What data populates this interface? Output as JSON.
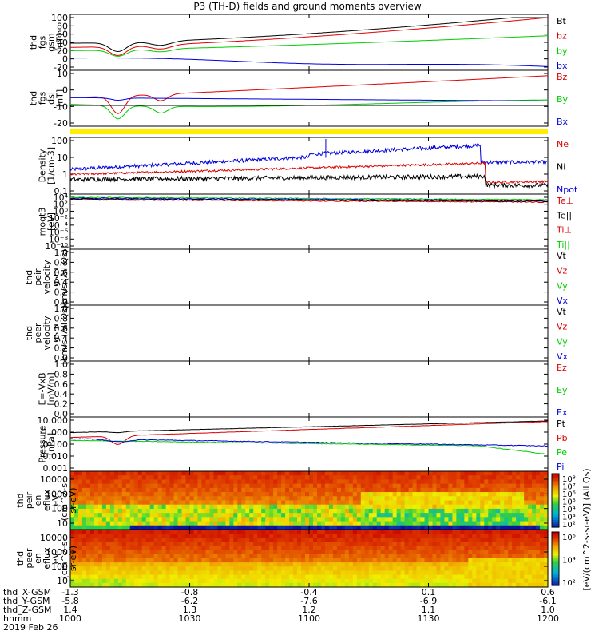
{
  "chart_data": {
    "title": "P3 (TH-D) fields and ground moments overview",
    "type": "line",
    "date_label": "2019 Feb 26",
    "panels": [
      {
        "id": "fgs_gsm",
        "ylabel": [
          "thd",
          "fgs",
          "gsm",
          "[nT]"
        ],
        "yticks": [
          "100",
          "80",
          "60",
          "40",
          "20",
          "0",
          "-20"
        ],
        "legend": [
          "Bt",
          "bz",
          "by",
          "bx"
        ],
        "legend_colors": [
          "#000000",
          "#dd0000",
          "#00cc00",
          "#0000dd"
        ]
      },
      {
        "id": "fgs_dsl",
        "ylabel": [
          "thd",
          "fgs",
          "dsl",
          "[nT]"
        ],
        "yticks": [
          "10",
          "0",
          "-10",
          "-20"
        ],
        "legend": [
          "Bz",
          "By",
          "Bx"
        ],
        "legend_colors": [
          "#dd0000",
          "#00cc00",
          "#0000dd"
        ]
      },
      {
        "id": "density",
        "ylabel": [
          "Density",
          "[1/cm-3]"
        ],
        "yticks": [
          "100",
          "10",
          "1",
          "0.1"
        ],
        "legend": [
          "Ne",
          "Ni",
          "Npot"
        ],
        "legend_colors": [
          "#dd0000",
          "#000000",
          "#0000dd"
        ]
      },
      {
        "id": "temperature",
        "ylabel": [
          "moqt3",
          "[eV]"
        ],
        "yticks": [
          "10⁴",
          "10²",
          "10⁰",
          "10⁻²",
          "10⁻⁴",
          "10⁻⁶",
          "10⁻⁸",
          "10⁻¹⁰"
        ],
        "legend": [
          "Te⊥",
          "Te||",
          "Ti⊥",
          "Ti||"
        ],
        "legend_colors": [
          "#dd0000",
          "#000000",
          "#dd0000",
          "#00cc00"
        ]
      },
      {
        "id": "peir_velocity",
        "ylabel": [
          "thd",
          "peir",
          "velocity",
          "gsm",
          "[km/s (All Qs)]"
        ],
        "yticks": [
          "1.0",
          "0.8",
          "0.6",
          "0.4",
          "0.2",
          "0.0"
        ],
        "legend": [
          "Vt",
          "Vz",
          "Vy",
          "Vx"
        ],
        "legend_colors": [
          "#000000",
          "#dd0000",
          "#00cc00",
          "#0000dd"
        ]
      },
      {
        "id": "peer_velocity",
        "ylabel": [
          "thd",
          "peer",
          "velocity",
          "gsm",
          "[km/s (All Qs)]"
        ],
        "yticks": [
          "1.0",
          "0.8",
          "0.6",
          "0.4",
          "0.2",
          "0.0"
        ],
        "legend": [
          "Vt",
          "Vz",
          "Vy",
          "Vx"
        ],
        "legend_colors": [
          "#000000",
          "#dd0000",
          "#00cc00",
          "#0000dd"
        ]
      },
      {
        "id": "efield",
        "ylabel": [
          "E=-VxB",
          "[mV/m]"
        ],
        "yticks": [
          "1.0",
          "0.8",
          "0.6",
          "0.4",
          "0.2",
          "0.0"
        ],
        "legend": [
          "Ez",
          "Ey",
          "Ex"
        ],
        "legend_colors": [
          "#dd0000",
          "#00cc00",
          "#0000dd"
        ]
      },
      {
        "id": "pressure",
        "ylabel": [
          "Pressure",
          "[nPa]"
        ],
        "yticks": [
          "10.000",
          "1.000",
          "0.100",
          "0.010",
          "0.001"
        ],
        "legend": [
          "Pt",
          "Pb",
          "Pe",
          "Pi"
        ],
        "legend_colors": [
          "#000000",
          "#dd0000",
          "#00cc00",
          "#0000dd"
        ]
      },
      {
        "id": "peir_eflux",
        "ylabel": [
          "thd",
          "peir",
          "en",
          "eflux",
          "eV",
          "(cm^2-s-",
          "sr-eV)"
        ],
        "yticks": [
          "10000",
          "1000",
          "100",
          "10"
        ]
      },
      {
        "id": "peer_eflux",
        "ylabel": [
          "thd",
          "peer",
          "en",
          "eflux",
          "eV",
          "(cm^2-s-",
          "sr-eV)"
        ],
        "yticks": [
          "10000",
          "1000",
          "100",
          "10"
        ]
      }
    ],
    "colorbar": {
      "label": "[eV/(cm^2-s-sr-eV)] (All Qs)",
      "ticks_top": [
        "10⁸",
        "10⁷",
        "10⁶",
        "10⁵",
        "10⁴",
        "10³",
        "10²"
      ],
      "ticks_bottom": [
        "10⁶",
        "10⁴",
        "10²"
      ]
    },
    "x_axis": {
      "row_labels": [
        "thd_X-GSM",
        "thd_Y-GSM",
        "thd_Z-GSM",
        "hhmm"
      ],
      "columns": [
        [
          "-1.3",
          "-5.8",
          "1.4",
          "1000"
        ],
        [
          "-0.8",
          "-6.2",
          "1.3",
          "1030"
        ],
        [
          "-0.4",
          "-7.6",
          "1.2",
          "1100"
        ],
        [
          "0.1",
          "-6.9",
          "1.1",
          "1130"
        ],
        [
          "0.6",
          "-6.1",
          "1.0",
          "1200"
        ]
      ]
    },
    "series_notes": {
      "Bt_range_nT": [
        15,
        100
      ],
      "bz_range_nT": [
        10,
        100
      ],
      "by_range_nT": [
        5,
        55
      ],
      "bx_range_nT": [
        -20,
        0
      ]
    }
  }
}
